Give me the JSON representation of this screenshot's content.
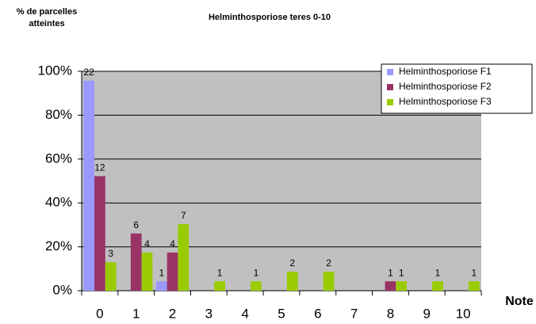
{
  "chart_data": {
    "type": "bar",
    "title": "Helminthosporiose teres 0-10",
    "ylabel": "% de parcelles atteintes",
    "xlabel": "Note",
    "categories": [
      "0",
      "1",
      "2",
      "3",
      "4",
      "5",
      "6",
      "7",
      "8",
      "9",
      "10"
    ],
    "ylim": [
      0,
      100
    ],
    "yticks": [
      {
        "value": 0,
        "label": "0%"
      },
      {
        "value": 20,
        "label": "20%"
      },
      {
        "value": 40,
        "label": "40%"
      },
      {
        "value": 60,
        "label": "60%"
      },
      {
        "value": 80,
        "label": "80%"
      },
      {
        "value": 100,
        "label": "100%"
      }
    ],
    "grid": true,
    "legend": "top-right",
    "series": [
      {
        "name": "Helminthosporiose F1",
        "color": "#9999ff",
        "values": [
          95.7,
          0,
          4.3,
          0,
          0,
          0,
          0,
          0,
          0,
          0,
          0
        ],
        "counts": [
          22,
          null,
          1,
          null,
          null,
          null,
          null,
          null,
          null,
          null,
          null
        ]
      },
      {
        "name": "Helminthosporiose F2",
        "color": "#993366",
        "values": [
          52.2,
          26.1,
          17.4,
          0,
          0,
          0,
          0,
          0,
          4.3,
          0,
          0
        ],
        "counts": [
          12,
          6,
          4,
          null,
          null,
          null,
          null,
          null,
          1,
          null,
          null
        ]
      },
      {
        "name": "Helminthosporiose F3",
        "color": "#99cc00",
        "values": [
          13,
          17.4,
          30.4,
          4.3,
          4.3,
          8.7,
          8.7,
          0,
          4.3,
          4.3,
          4.3
        ],
        "counts": [
          3,
          4,
          7,
          1,
          1,
          2,
          2,
          null,
          1,
          1,
          1
        ]
      }
    ]
  }
}
